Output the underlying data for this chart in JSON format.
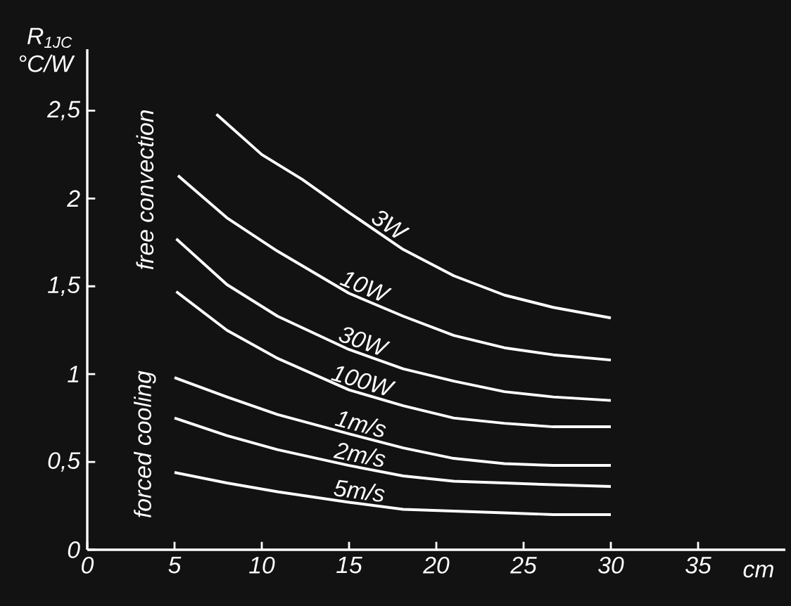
{
  "chart_data": {
    "type": "line",
    "ylabel": "R$_{1JC}$ °C/W",
    "xlabel": "cm",
    "xlim": [
      0,
      40
    ],
    "ylim": [
      0,
      2.85
    ],
    "xticks": [
      0,
      5,
      10,
      15,
      20,
      25,
      30,
      35
    ],
    "yticks": [
      0,
      {
        "value": 0.5,
        "label": "0,5"
      },
      1,
      {
        "value": 1.5,
        "label": "1,5"
      },
      2,
      {
        "value": 2.5,
        "label": "2,5"
      }
    ],
    "marker": "none",
    "line_style": "solid",
    "grid": false,
    "annotations": [
      "free convection",
      "forced cooling"
    ],
    "series": [
      {
        "name": "3W",
        "color": "#ffffff",
        "x": [
          7.4,
          10,
          12.3,
          15,
          18.1,
          21,
          23.9,
          26.7,
          30
        ],
        "values": [
          2.48,
          2.25,
          2.11,
          1.92,
          1.71,
          1.56,
          1.45,
          1.38,
          1.32
        ]
      },
      {
        "name": "10W",
        "color": "#ffffff",
        "x": [
          5.2,
          8,
          10.9,
          15,
          18.1,
          21,
          23.9,
          26.7,
          30
        ],
        "values": [
          2.13,
          1.89,
          1.7,
          1.46,
          1.33,
          1.22,
          1.15,
          1.11,
          1.08
        ]
      },
      {
        "name": "30W",
        "color": "#ffffff",
        "x": [
          5.1,
          8,
          10.9,
          15,
          18.1,
          21,
          23.9,
          26.7,
          30
        ],
        "values": [
          1.77,
          1.51,
          1.33,
          1.14,
          1.03,
          0.96,
          0.9,
          0.87,
          0.85
        ]
      },
      {
        "name": "100W",
        "color": "#ffffff",
        "x": [
          5.1,
          8,
          10.9,
          15,
          18.1,
          21,
          23.9,
          26.7,
          30
        ],
        "values": [
          1.47,
          1.25,
          1.09,
          0.91,
          0.82,
          0.75,
          0.72,
          0.7,
          0.7
        ]
      },
      {
        "name": "1m/s",
        "color": "#ffffff",
        "x": [
          5,
          8,
          10.9,
          15,
          18.1,
          21,
          23.9,
          26.7,
          30
        ],
        "values": [
          0.98,
          0.87,
          0.77,
          0.66,
          0.58,
          0.52,
          0.49,
          0.48,
          0.48
        ]
      },
      {
        "name": "2m/s",
        "color": "#ffffff",
        "x": [
          5,
          8,
          10.9,
          15,
          18.1,
          21,
          23.9,
          26.7,
          30
        ],
        "values": [
          0.75,
          0.65,
          0.57,
          0.48,
          0.42,
          0.39,
          0.38,
          0.37,
          0.36
        ]
      },
      {
        "name": "5m/s",
        "color": "#ffffff",
        "x": [
          5,
          8,
          10.9,
          15,
          18.1,
          21,
          23.9,
          26.7,
          30
        ],
        "values": [
          0.44,
          0.38,
          0.33,
          0.27,
          0.23,
          0.22,
          0.21,
          0.2,
          0.2
        ]
      }
    ]
  }
}
